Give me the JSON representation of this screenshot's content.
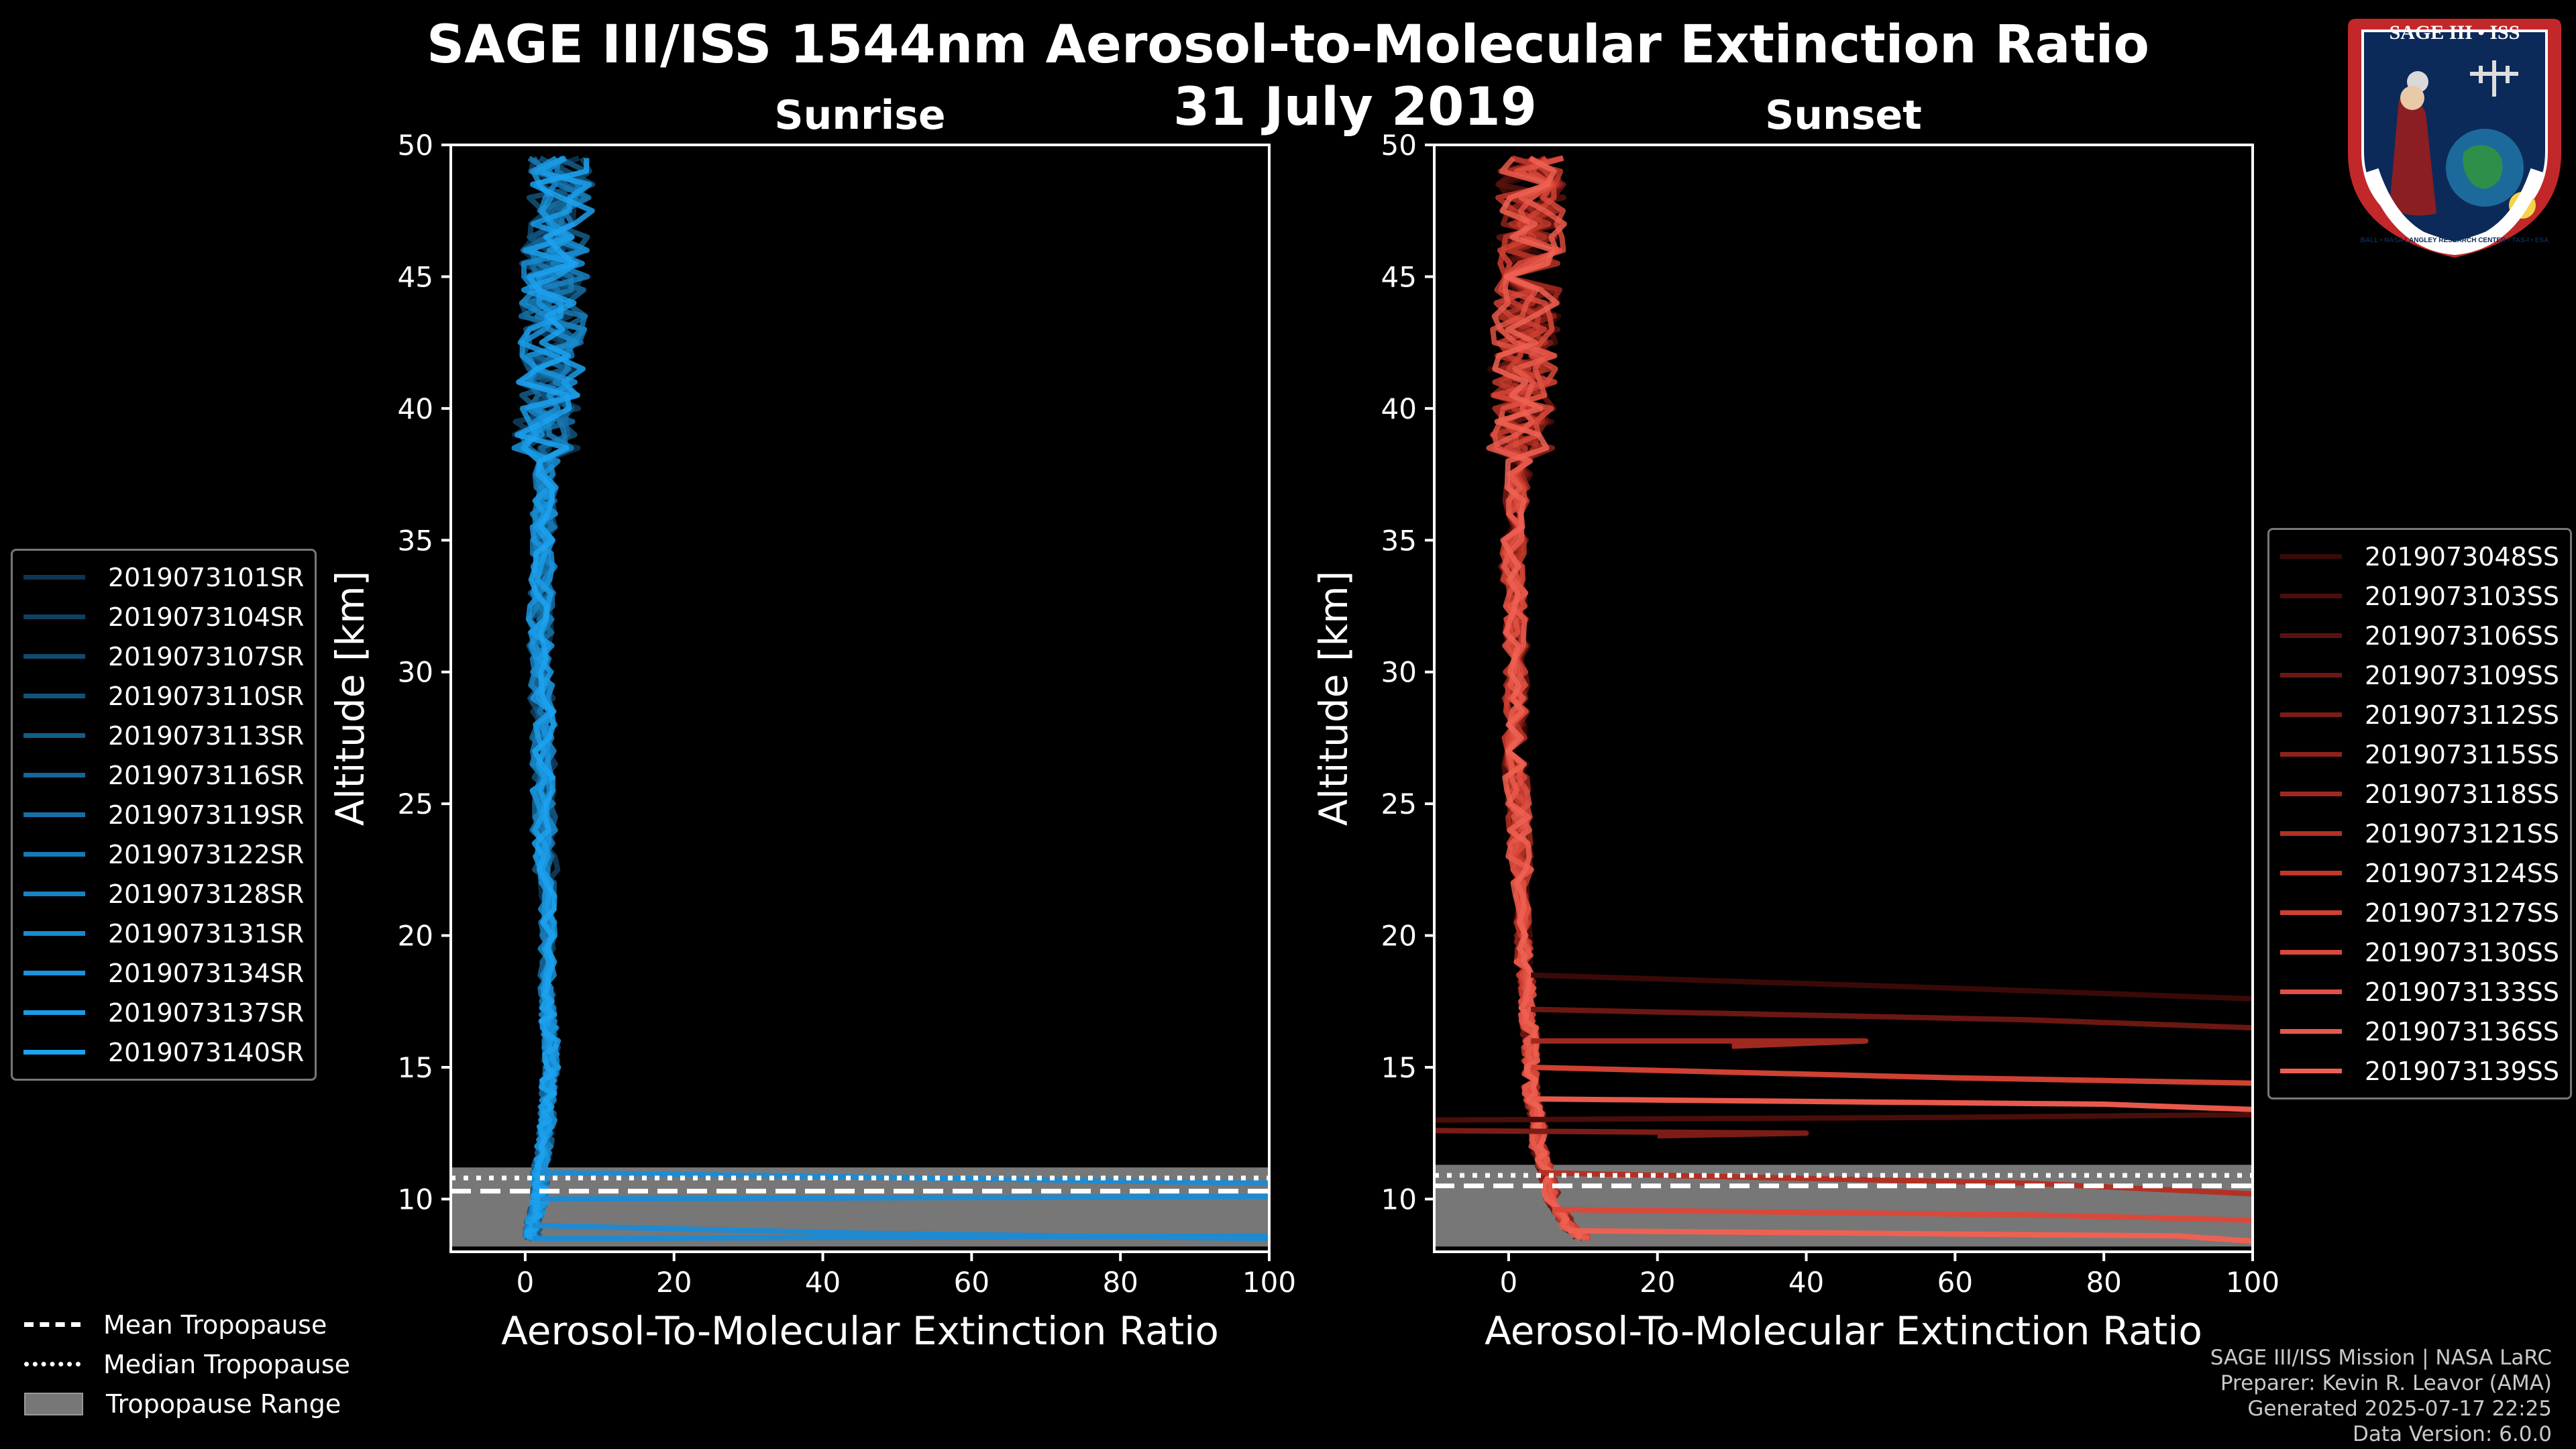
{
  "title": "SAGE III/ISS 1544nm Aerosol-to-Molecular Extinction Ratio",
  "date": "31 July 2019",
  "logo": {
    "top_text": "SAGE III • ISS",
    "ring_text": "BALL • NASA LANGLEY RESEARCH CENTER • TAS-I • ESA"
  },
  "footer": {
    "line1": "SAGE III/ISS Mission | NASA LaRC",
    "line2": "Preparer: Kevin R. Leavor (AMA)",
    "line3": "Generated 2025-07-17 22:25",
    "line4": "Data Version: 6.0.0"
  },
  "tropopause_legend": {
    "mean": "Mean Tropopause",
    "median": "Median Tropopause",
    "range": "Tropopause Range"
  },
  "chart_data": [
    {
      "type": "line",
      "title": "Sunrise",
      "xlabel": "Aerosol-To-Molecular Extinction Ratio",
      "ylabel": "Altitude [km]",
      "xlim": [
        -10,
        100
      ],
      "ylim": [
        8,
        50
      ],
      "xticks": [
        0,
        20,
        40,
        60,
        80,
        100
      ],
      "yticks": [
        10,
        15,
        20,
        25,
        30,
        35,
        40,
        45,
        50
      ],
      "tropopause": {
        "mean": 10.3,
        "median": 10.8,
        "range": [
          8.2,
          11.2
        ]
      },
      "series_color": "#1f8ad0",
      "legend_colors": [
        "#0e3654",
        "#104060",
        "#114a6e",
        "#12537c",
        "#145d8a",
        "#156698",
        "#1670a6",
        "#1779b4",
        "#1882c2",
        "#198bd0",
        "#1a93dc",
        "#1b9be6",
        "#1ca2f0"
      ],
      "series": [
        {
          "name": "2019073101SR"
        },
        {
          "name": "2019073104SR"
        },
        {
          "name": "2019073107SR"
        },
        {
          "name": "2019073110SR"
        },
        {
          "name": "2019073113SR"
        },
        {
          "name": "2019073116SR"
        },
        {
          "name": "2019073119SR"
        },
        {
          "name": "2019073122SR"
        },
        {
          "name": "2019073128SR"
        },
        {
          "name": "2019073131SR"
        },
        {
          "name": "2019073134SR"
        },
        {
          "name": "2019073137SR"
        },
        {
          "name": "2019073140SR"
        }
      ],
      "profile": {
        "altitude": [
          8.5,
          9,
          9.5,
          10,
          10.5,
          11,
          12,
          13,
          14,
          15,
          16,
          17,
          18,
          20,
          22,
          24,
          26,
          28,
          30,
          32,
          34,
          36,
          38,
          40,
          42,
          44,
          46,
          48,
          50
        ],
        "ratio": [
          1,
          1,
          1.5,
          2,
          2,
          2,
          2.5,
          3,
          3,
          3.5,
          3.5,
          3,
          3,
          3,
          3,
          2.5,
          2.5,
          2.5,
          2,
          2,
          2.5,
          2.5,
          3,
          3,
          3.5,
          4,
          4,
          5,
          4
        ]
      },
      "tropospheric_excursions": [
        {
          "altitude": [
            8.5,
            8.6,
            8.7
          ],
          "ratio": [
            1,
            100,
            100
          ]
        },
        {
          "altitude": [
            9.0,
            8.7,
            8.5
          ],
          "ratio": [
            1,
            46,
            100
          ]
        },
        {
          "altitude": [
            10.0,
            10.1,
            10.2
          ],
          "ratio": [
            2,
            100,
            100
          ]
        },
        {
          "altitude": [
            11.0,
            10.9,
            10.6
          ],
          "ratio": [
            2,
            30,
            100
          ]
        }
      ],
      "legend_position": "left"
    },
    {
      "type": "line",
      "title": "Sunset",
      "xlabel": "Aerosol-To-Molecular Extinction Ratio",
      "ylabel": "Altitude [km]",
      "xlim": [
        -10,
        100
      ],
      "ylim": [
        8,
        50
      ],
      "xticks": [
        0,
        20,
        40,
        60,
        80,
        100
      ],
      "yticks": [
        10,
        15,
        20,
        25,
        30,
        35,
        40,
        45,
        50
      ],
      "tropopause": {
        "mean": 10.5,
        "median": 10.9,
        "range": [
          8.2,
          11.3
        ]
      },
      "series_color": "#e45a4c",
      "legend_colors": [
        "#3a0a08",
        "#4a0e0b",
        "#5a120e",
        "#6b1712",
        "#7c1c16",
        "#8e221a",
        "#a0291f",
        "#b23124",
        "#c2392b",
        "#cf4133",
        "#d9493b",
        "#e15143",
        "#e8594b",
        "#ee6152"
      ],
      "series": [
        {
          "name": "2019073048SS"
        },
        {
          "name": "2019073103SS"
        },
        {
          "name": "2019073106SS"
        },
        {
          "name": "2019073109SS"
        },
        {
          "name": "2019073112SS"
        },
        {
          "name": "2019073115SS"
        },
        {
          "name": "2019073118SS"
        },
        {
          "name": "2019073121SS"
        },
        {
          "name": "2019073124SS"
        },
        {
          "name": "2019073127SS"
        },
        {
          "name": "2019073130SS"
        },
        {
          "name": "2019073133SS"
        },
        {
          "name": "2019073136SS"
        },
        {
          "name": "2019073139SS"
        }
      ],
      "profile": {
        "altitude": [
          8.5,
          9,
          10,
          11,
          12,
          13,
          14,
          15,
          16,
          17,
          18,
          19,
          20,
          22,
          24,
          26,
          28,
          30,
          32,
          34,
          36,
          38,
          40,
          42,
          44,
          46,
          48,
          50
        ],
        "ratio": [
          10,
          8,
          6,
          5,
          4,
          4,
          3,
          3,
          3,
          2.5,
          2.5,
          2,
          2,
          1.5,
          1.5,
          1,
          1,
          1,
          1,
          0.5,
          1,
          1.5,
          2,
          2,
          2.5,
          3,
          3,
          3
        ]
      },
      "tropospheric_excursions": [
        {
          "altitude": [
            18.5,
            18.0,
            17.6
          ],
          "ratio": [
            3,
            60,
            100
          ]
        },
        {
          "altitude": [
            17.2,
            16.8,
            16.5
          ],
          "ratio": [
            3,
            70,
            100
          ]
        },
        {
          "altitude": [
            16.0,
            16.0,
            15.8
          ],
          "ratio": [
            3,
            48,
            30
          ]
        },
        {
          "altitude": [
            15.0,
            14.6,
            14.4
          ],
          "ratio": [
            3,
            60,
            100
          ]
        },
        {
          "altitude": [
            13.8,
            13.6,
            13.4
          ],
          "ratio": [
            3,
            80,
            100
          ]
        },
        {
          "altitude": [
            13.0,
            13.1,
            13.2
          ],
          "ratio": [
            -10,
            60,
            100
          ]
        },
        {
          "altitude": [
            12.6,
            12.5,
            12.4
          ],
          "ratio": [
            -10,
            40,
            20
          ]
        },
        {
          "altitude": [
            11.0,
            10.6,
            10.2
          ],
          "ratio": [
            4,
            70,
            100
          ]
        },
        {
          "altitude": [
            9.6,
            9.4,
            9.2
          ],
          "ratio": [
            6,
            70,
            100
          ]
        },
        {
          "altitude": [
            8.8,
            8.6,
            8.4
          ],
          "ratio": [
            8,
            90,
            100
          ]
        }
      ],
      "legend_position": "right"
    }
  ]
}
